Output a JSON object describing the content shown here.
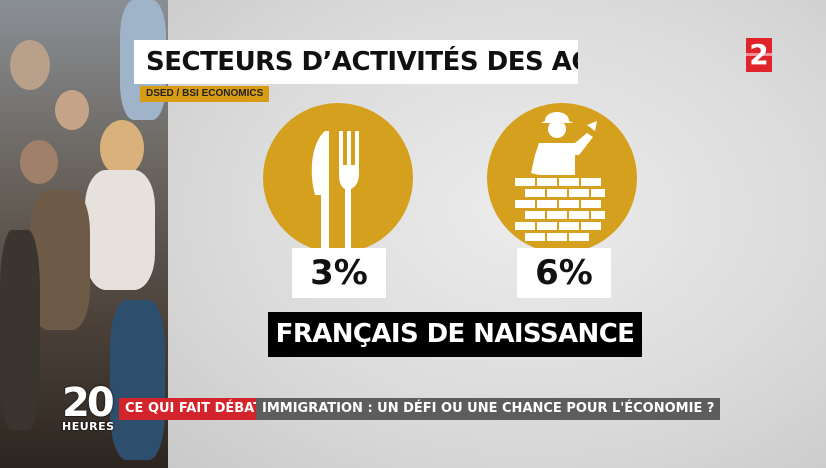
{
  "infographic": {
    "title": "SECTEURS D’ACTIVITÉS DES ACTIFS",
    "source": "DSED / BSI ECONOMICS",
    "items": [
      {
        "icon": "fork-knife-icon",
        "value": "3%"
      },
      {
        "icon": "bricklayer-icon",
        "value": "6%"
      }
    ],
    "group_label": "FRANÇAIS DE NAISSANCE",
    "accent_color": "#d6a01f"
  },
  "channel": {
    "logo": "2",
    "logo_color": "#e0242b"
  },
  "show": {
    "number": "20",
    "word": "HEURES"
  },
  "lower_third": {
    "tag": "CE QUI FAIT DÉBAT",
    "headline": "IMMIGRATION : UN DÉFI OU UNE CHANCE POUR L'ÉCONOMIE ?",
    "tag_color": "#d3232b"
  }
}
